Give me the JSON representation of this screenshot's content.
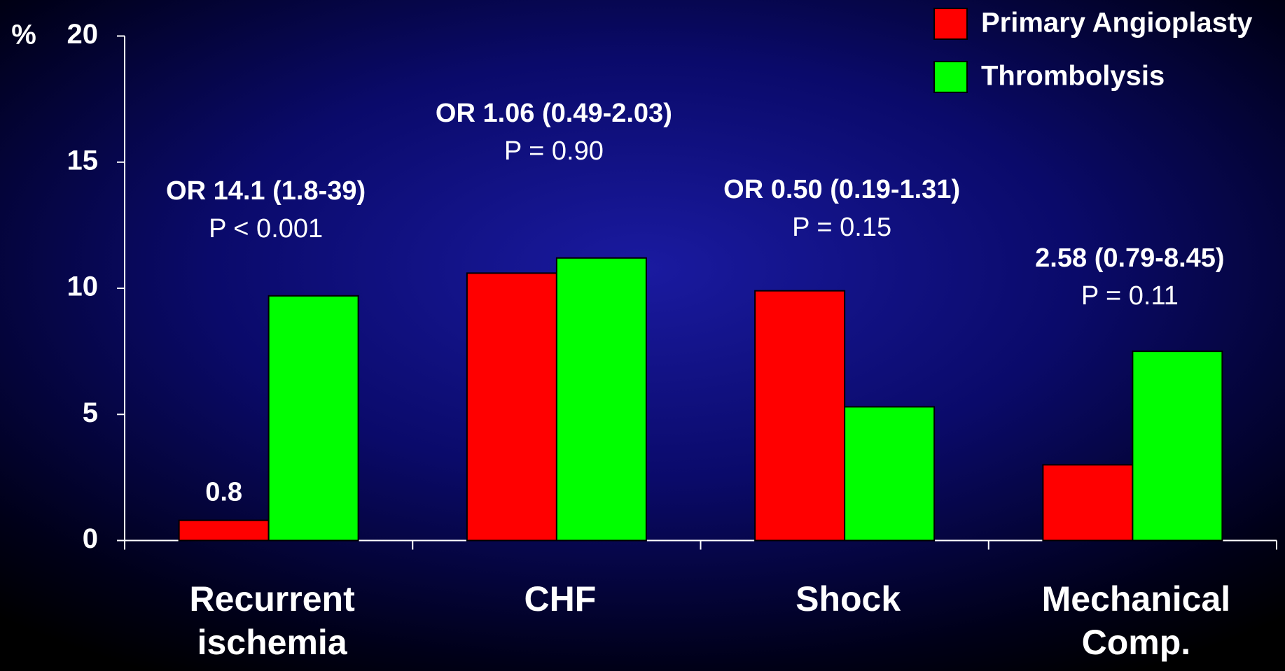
{
  "chart_data": {
    "type": "bar",
    "y_label": "%",
    "categories": [
      "Recurrent ischemia",
      "CHF",
      "Shock",
      "Mechanical Comp."
    ],
    "series": [
      {
        "name": "Primary Angioplasty",
        "color": "#ff0000",
        "values": [
          0.8,
          10.6,
          9.9,
          3.0
        ]
      },
      {
        "name": "Thrombolysis",
        "color": "#00ff00",
        "values": [
          9.7,
          11.2,
          5.3,
          7.5
        ]
      }
    ],
    "annotations": [
      {
        "or": "OR 14.1 (1.8-39)",
        "p": "P < 0.001"
      },
      {
        "or": "OR 1.06 (0.49-2.03)",
        "p": "P = 0.90"
      },
      {
        "or": "OR 0.50 (0.19-1.31)",
        "p": "P = 0.15"
      },
      {
        "or": "2.58 (0.79-8.45)",
        "p": "P = 0.11"
      }
    ],
    "ylim": [
      0,
      20
    ],
    "yticks": [
      0,
      5,
      10,
      15,
      20
    ],
    "legend": "top-right"
  }
}
